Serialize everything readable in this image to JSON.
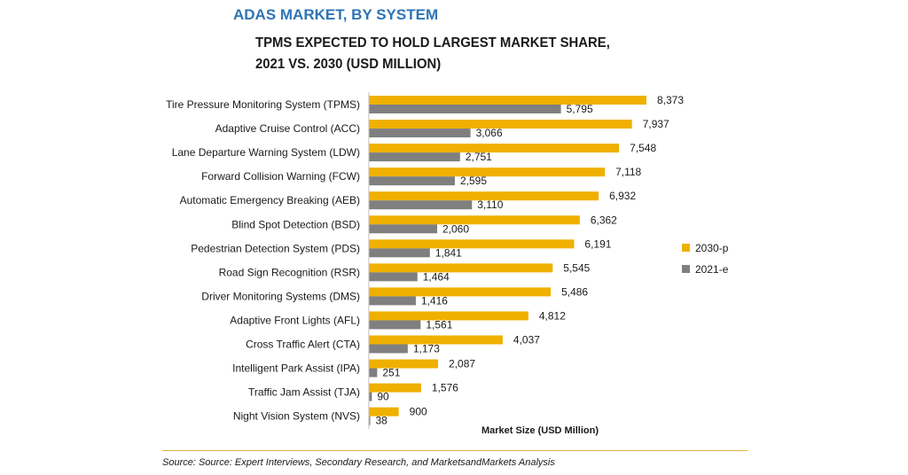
{
  "chart_data": {
    "type": "bar",
    "orientation": "horizontal",
    "title": "ADAS MARKET, BY SYSTEM",
    "subtitle": [
      "TPMS EXPECTED TO HOLD LARGEST MARKET SHARE,",
      "2021 VS. 2030 (USD MILLION)"
    ],
    "xlabel": "Market Size (USD Million)",
    "categories": [
      "Tire Pressure Monitoring System (TPMS)",
      "Adaptive Cruise Control (ACC)",
      "Lane Departure Warning System (LDW)",
      "Forward Collision Warning (FCW)",
      "Automatic Emergency Breaking (AEB)",
      "Blind Spot Detection (BSD)",
      "Pedestrian Detection System (PDS)",
      "Road Sign Recognition (RSR)",
      "Driver Monitoring Systems (DMS)",
      "Adaptive Front Lights (AFL)",
      "Cross Traffic Alert (CTA)",
      "Intelligent Park Assist (IPA)",
      "Traffic Jam Assist (TJA)",
      "Night Vision System (NVS)"
    ],
    "series": [
      {
        "name": "2030-p",
        "color": "#f0b000",
        "values": [
          8373,
          7937,
          7548,
          7118,
          6932,
          6362,
          6191,
          5545,
          5486,
          4812,
          4037,
          2087,
          1576,
          900
        ],
        "labels": [
          "8,373",
          "7,937",
          "7,548",
          "7,118",
          "6,932",
          "6,362",
          "6,191",
          "5,545",
          "5,486",
          "4,812",
          "4,037",
          "2,087",
          "1,576",
          "900"
        ]
      },
      {
        "name": "2021-e",
        "color": "#7f7f7f",
        "values": [
          5795,
          3066,
          2751,
          2595,
          3110,
          2060,
          1841,
          1464,
          1416,
          1561,
          1173,
          251,
          90,
          38
        ],
        "labels": [
          "5,795",
          "3,066",
          "2,751",
          "2,595",
          "3,110",
          "2,060",
          "1,841",
          "1,464",
          "1,416",
          "1,561",
          "1,173",
          "251",
          "90",
          "38"
        ]
      }
    ],
    "xlim": [
      0,
      8373
    ],
    "grid": false,
    "legend": "right"
  },
  "source": "Source: Source: Expert Interviews, Secondary Research, and MarketsandMarkets Analysis"
}
